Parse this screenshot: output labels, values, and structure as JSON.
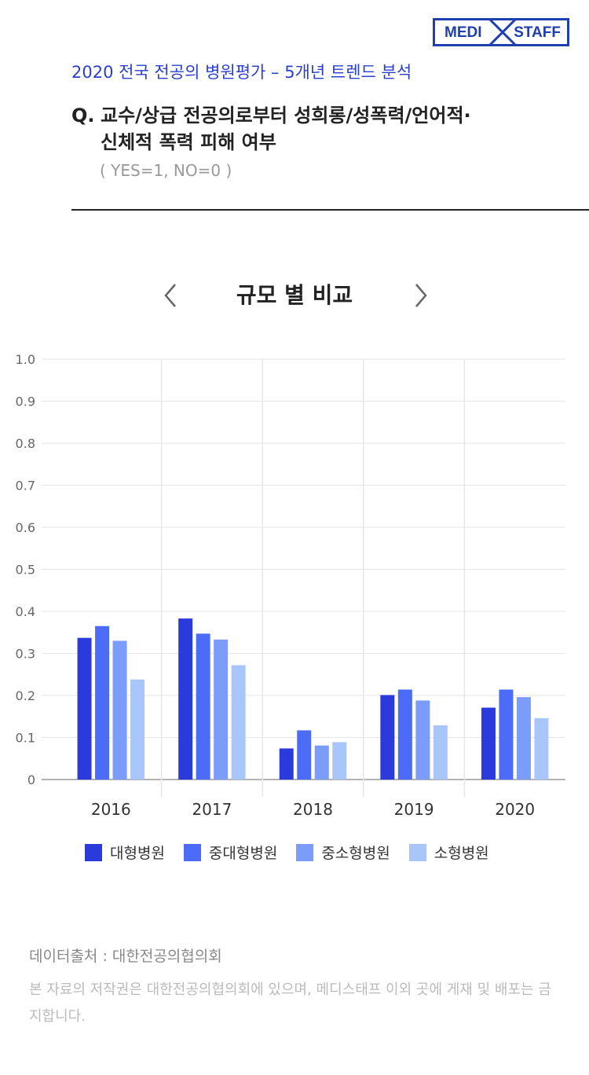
{
  "brand": {
    "left": "MEDI",
    "right": "STAFF"
  },
  "header": {
    "subtitle": "2020 전국 전공의 병원평가 – 5개년 트렌드 분석",
    "question_prefix": "Q.",
    "question_line1": "교수/상급 전공의로부터 성희롱/성폭력/언어적·",
    "question_line2": "신체적 폭력 피해 여부",
    "note": "( YES=1, NO=0 )"
  },
  "chart_nav": {
    "title": "규모 별 비교",
    "prev_icon": "chevron-left-icon",
    "next_icon": "chevron-right-icon"
  },
  "chart_data": {
    "type": "bar",
    "categories": [
      "2016",
      "2017",
      "2018",
      "2019",
      "2020"
    ],
    "ylim": [
      0,
      1.0
    ],
    "yticks": [
      "0",
      "0.1",
      "0.2",
      "0.3",
      "0.4",
      "0.5",
      "0.6",
      "0.7",
      "0.8",
      "0.9",
      "1.0"
    ],
    "grid": true,
    "legend_position": "bottom",
    "series": [
      {
        "name": "대형병원",
        "color": "#2b3adb",
        "values": [
          0.337,
          0.383,
          0.074,
          0.201,
          0.171
        ]
      },
      {
        "name": "중대형병원",
        "color": "#4c6cf7",
        "values": [
          0.365,
          0.347,
          0.117,
          0.214,
          0.214
        ]
      },
      {
        "name": "중소형병원",
        "color": "#7b9cf8",
        "values": [
          0.33,
          0.333,
          0.081,
          0.188,
          0.196
        ]
      },
      {
        "name": "소형병원",
        "color": "#a9c6fb",
        "values": [
          0.238,
          0.272,
          0.089,
          0.129,
          0.146
        ]
      }
    ]
  },
  "footer": {
    "source": "데이터출처 : 대한전공의협의회",
    "copyright": "본 자료의 저작권은 대한전공의협의회에 있으며, 메디스태프 이외 곳에 게재 및 배포는 금지합니다."
  }
}
